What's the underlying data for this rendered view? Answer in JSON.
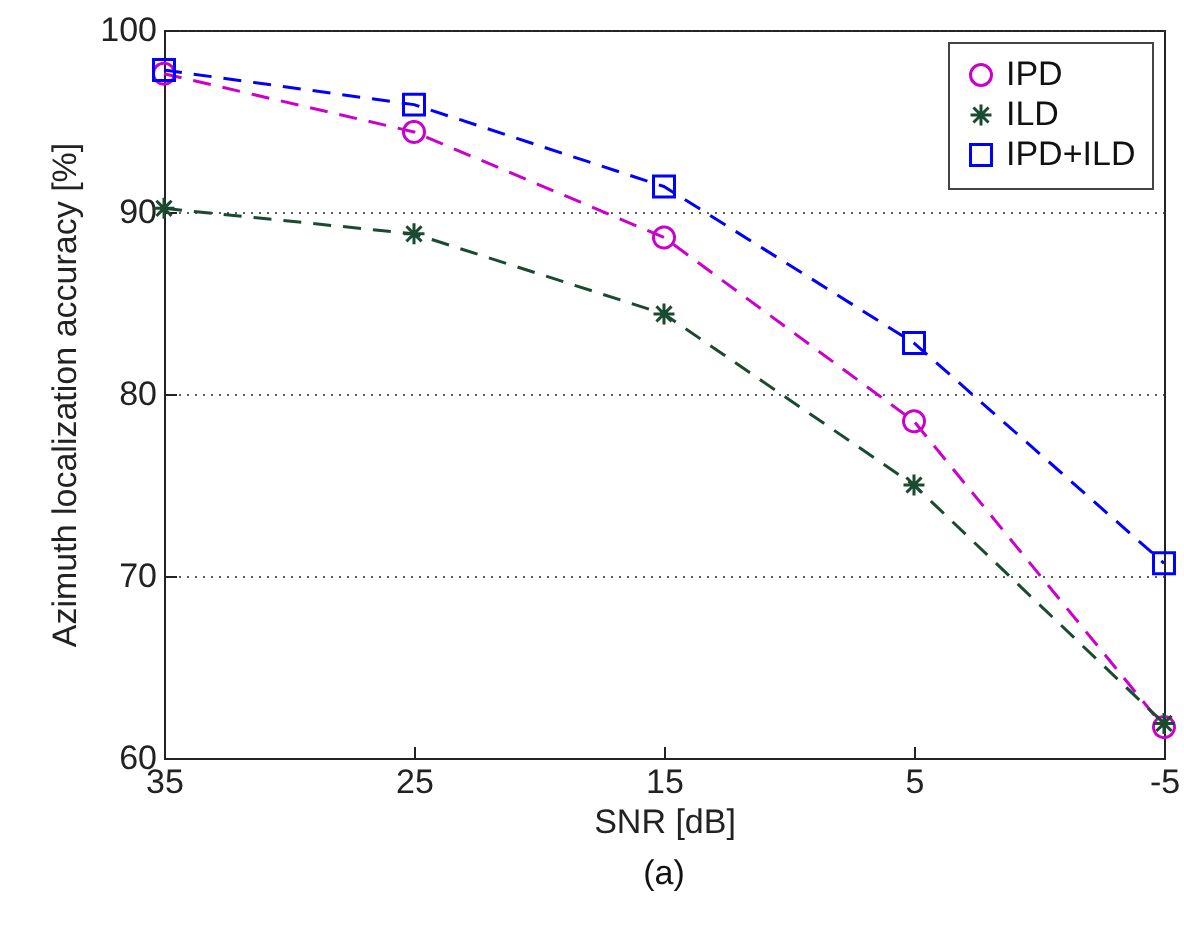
{
  "chart_data": {
    "type": "line",
    "xlabel": "SNR [dB]",
    "ylabel": "Azimuth localization accuracy [%]",
    "annotations": [
      "(a)"
    ],
    "x": [
      35,
      25,
      15,
      5,
      -5
    ],
    "series": [
      {
        "name": "IPD",
        "color": "#cc00cc",
        "marker": "circle",
        "values": [
          97.6,
          94.4,
          88.6,
          78.5,
          61.7
        ]
      },
      {
        "name": "ILD",
        "color": "#1a4a30",
        "marker": "cross",
        "values": [
          90.2,
          88.8,
          84.4,
          75.0,
          61.9
        ]
      },
      {
        "name": "IPD+ILD",
        "color": "#0000ff",
        "marker": "square",
        "values": [
          97.8,
          95.9,
          91.4,
          82.8,
          70.7
        ]
      }
    ],
    "xlim": [
      35,
      -5
    ],
    "xticks": [
      35,
      25,
      15,
      5,
      -5
    ],
    "ylim": [
      60,
      100
    ],
    "yticks": [
      60,
      70,
      80,
      90,
      100
    ],
    "grid": "y",
    "legend": "top right",
    "line_style": "dashed"
  }
}
